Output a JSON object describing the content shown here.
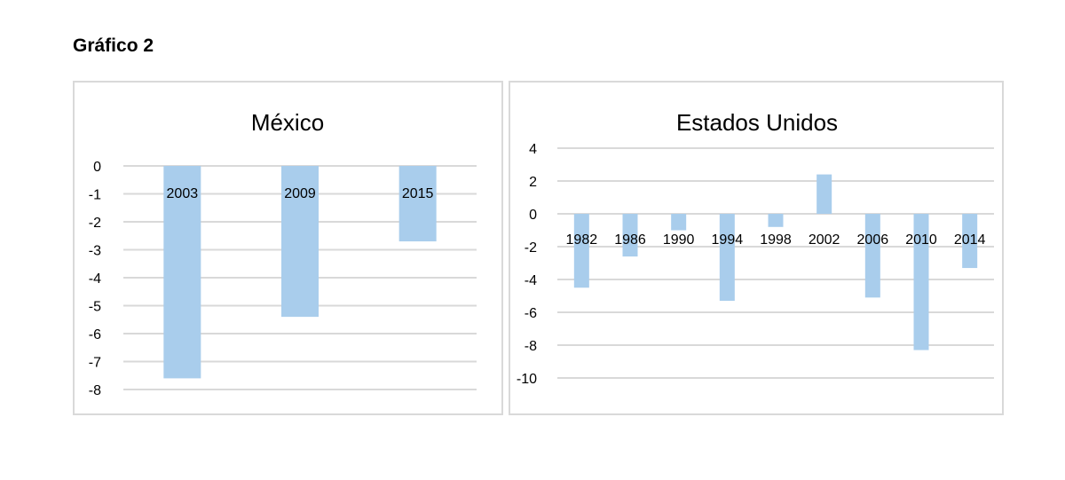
{
  "figure_title": "Gráfico 2",
  "colors": {
    "bar": "#a9cdec",
    "grid": "#d9d9d9",
    "border": "#d9d9d9"
  },
  "chart_data": [
    {
      "type": "bar",
      "title": "México",
      "categories": [
        "2003",
        "2009",
        "2015"
      ],
      "values": [
        -7.6,
        -5.4,
        -2.7
      ],
      "ylim": [
        -8,
        0
      ],
      "yticks": [
        0,
        -1,
        -2,
        -3,
        -4,
        -5,
        -6,
        -7,
        -8
      ],
      "ytick_labels": [
        "0",
        "-1",
        "-2",
        "-3",
        "-4",
        "-5",
        "-6",
        "-7",
        "-8"
      ],
      "grid": true,
      "legend": "none"
    },
    {
      "type": "bar",
      "title": "Estados Unidos",
      "categories": [
        "1982",
        "1986",
        "1990",
        "1994",
        "1998",
        "2002",
        "2006",
        "2010",
        "2014"
      ],
      "values": [
        -4.5,
        -2.6,
        -1.0,
        -5.3,
        -0.8,
        2.4,
        -5.1,
        -8.3,
        -3.3
      ],
      "ylim": [
        -10,
        4
      ],
      "yticks": [
        4,
        2,
        0,
        -2,
        -4,
        -6,
        -8,
        -10
      ],
      "ytick_labels": [
        "4",
        "2",
        "0",
        "-2",
        "-4",
        "-6",
        "-8",
        "-10"
      ],
      "grid": true,
      "legend": "none"
    }
  ]
}
